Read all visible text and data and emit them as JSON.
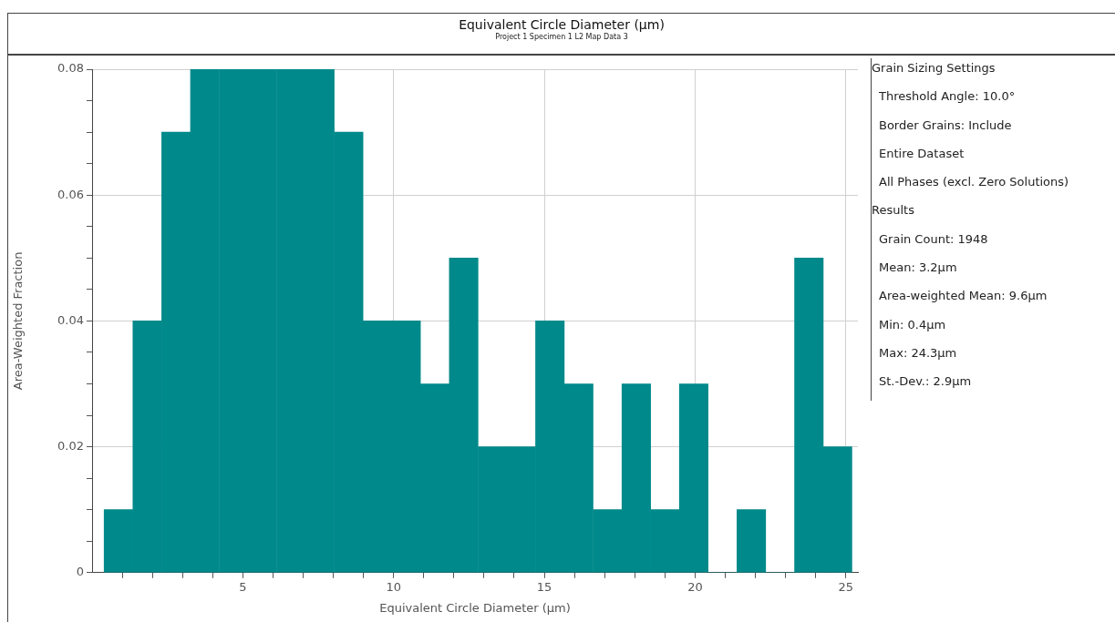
{
  "chart_data": {
    "type": "histogram",
    "title": "Equivalent Circle Diameter (µm)",
    "subtitle": "Project 1 Specimen 1 L2 Map Data 3",
    "xlabel": "Equivalent Circle Diameter (µm)",
    "ylabel": "Area-Weighted Fraction",
    "bins": [
      0.4,
      1.35,
      2.31,
      3.26,
      4.22,
      5.17,
      6.12,
      7.08,
      8.03,
      8.99,
      9.94,
      10.89,
      11.85,
      12.8,
      13.76,
      14.71,
      15.66,
      16.62,
      17.57,
      18.53,
      19.48,
      20.43,
      21.39,
      22.34,
      23.3,
      24.25,
      25.2
    ],
    "values": [
      0.01,
      0.04,
      0.07,
      0.08,
      0.08,
      0.08,
      0.08,
      0.08,
      0.07,
      0.04,
      0.04,
      0.03,
      0.05,
      0.02,
      0.02,
      0.04,
      0.03,
      0.01,
      0.03,
      0.01,
      0.03,
      0,
      0.01,
      0,
      0.05,
      0.02
    ],
    "color": "#00898a",
    "xlim": [
      0,
      25.4
    ],
    "ylim": [
      0,
      0.08
    ],
    "xticks": [
      {
        "value": 1,
        "label": null
      },
      {
        "value": 2,
        "label": null
      },
      {
        "value": 3,
        "label": null
      },
      {
        "value": 4,
        "label": null
      },
      5,
      {
        "value": 6,
        "label": null
      },
      {
        "value": 7,
        "label": null
      },
      {
        "value": 8,
        "label": null
      },
      {
        "value": 9,
        "label": null
      },
      10,
      {
        "value": 11,
        "label": null
      },
      {
        "value": 12,
        "label": null
      },
      {
        "value": 13,
        "label": null
      },
      {
        "value": 14,
        "label": null
      },
      15,
      {
        "value": 16,
        "label": null
      },
      {
        "value": 17,
        "label": null
      },
      {
        "value": 18,
        "label": null
      },
      {
        "value": 19,
        "label": null
      },
      20,
      {
        "value": 21,
        "label": null
      },
      {
        "value": 22,
        "label": null
      },
      {
        "value": 23,
        "label": null
      },
      {
        "value": 24,
        "label": null
      },
      25
    ],
    "yticks": [
      0,
      {
        "value": 0.005,
        "label": null
      },
      {
        "value": 0.01,
        "label": null
      },
      {
        "value": 0.015,
        "label": null
      },
      0.02,
      {
        "value": 0.025,
        "label": null
      },
      {
        "value": 0.03,
        "label": null
      },
      {
        "value": 0.035,
        "label": null
      },
      0.04,
      {
        "value": 0.045,
        "label": null
      },
      {
        "value": 0.05,
        "label": null
      },
      {
        "value": 0.055,
        "label": null
      },
      0.06,
      {
        "value": 0.065,
        "label": null
      },
      {
        "value": 0.07,
        "label": null
      },
      {
        "value": 0.075,
        "label": null
      },
      0.08
    ],
    "grid": true,
    "annotations": [
      "Grain Sizing Settings",
      "Threshold Angle: 10.0°",
      "Border Grains: Include",
      "Entire Dataset",
      "All Phases (excl. Zero Solutions)",
      "Results",
      "Grain Count: 1948",
      "Mean: 3.2µm",
      "Area-weighted Mean: 9.6µm",
      "Min: 0.4µm",
      "Max: 24.3µm",
      "St.-Dev.: 2.9µm"
    ]
  }
}
